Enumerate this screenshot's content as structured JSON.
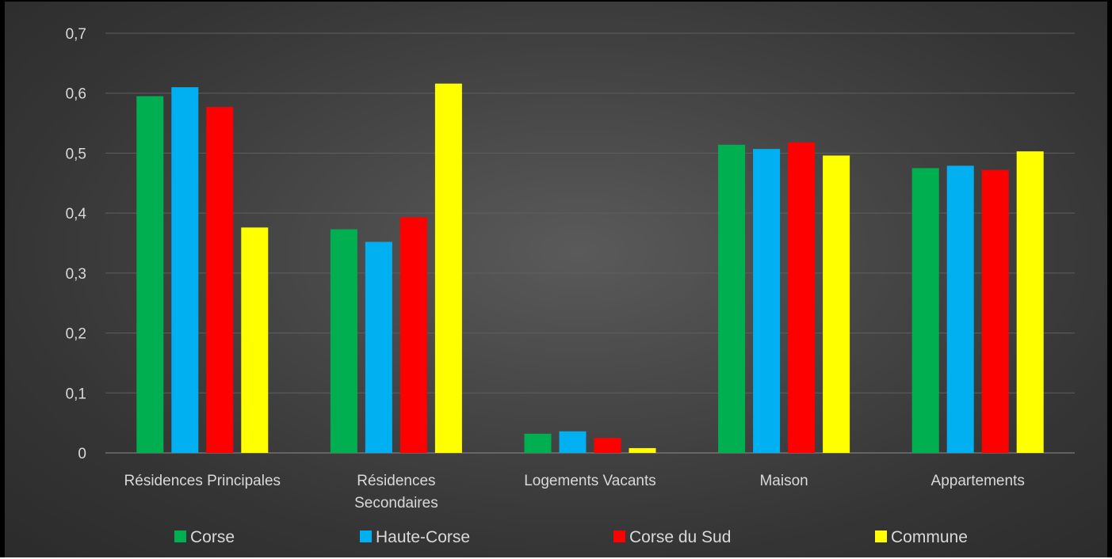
{
  "chart_data": {
    "type": "bar",
    "title": "",
    "xlabel": "",
    "ylabel": "",
    "ylim": [
      0,
      0.7
    ],
    "yticks": [
      "0",
      "0,1",
      "0,2",
      "0,3",
      "0,4",
      "0,5",
      "0,6",
      "0,7"
    ],
    "categories": [
      [
        "Résidences Principales"
      ],
      [
        "Résidences",
        "Secondaires"
      ],
      [
        "Logements Vacants"
      ],
      [
        "Maison"
      ],
      [
        "Appartements"
      ]
    ],
    "series": [
      {
        "name": "Corse",
        "color": "#00b050",
        "values": [
          0.595,
          0.373,
          0.032,
          0.514,
          0.475
        ]
      },
      {
        "name": "Haute-Corse",
        "color": "#00b0f0",
        "values": [
          0.61,
          0.352,
          0.036,
          0.507,
          0.479
        ]
      },
      {
        "name": "Corse du Sud",
        "color": "#ff0000",
        "values": [
          0.577,
          0.393,
          0.025,
          0.518,
          0.472
        ]
      },
      {
        "name": "Commune",
        "color": "#ffff00",
        "values": [
          0.376,
          0.616,
          0.008,
          0.496,
          0.503
        ]
      }
    ],
    "grid": true,
    "legend_position": "bottom"
  }
}
